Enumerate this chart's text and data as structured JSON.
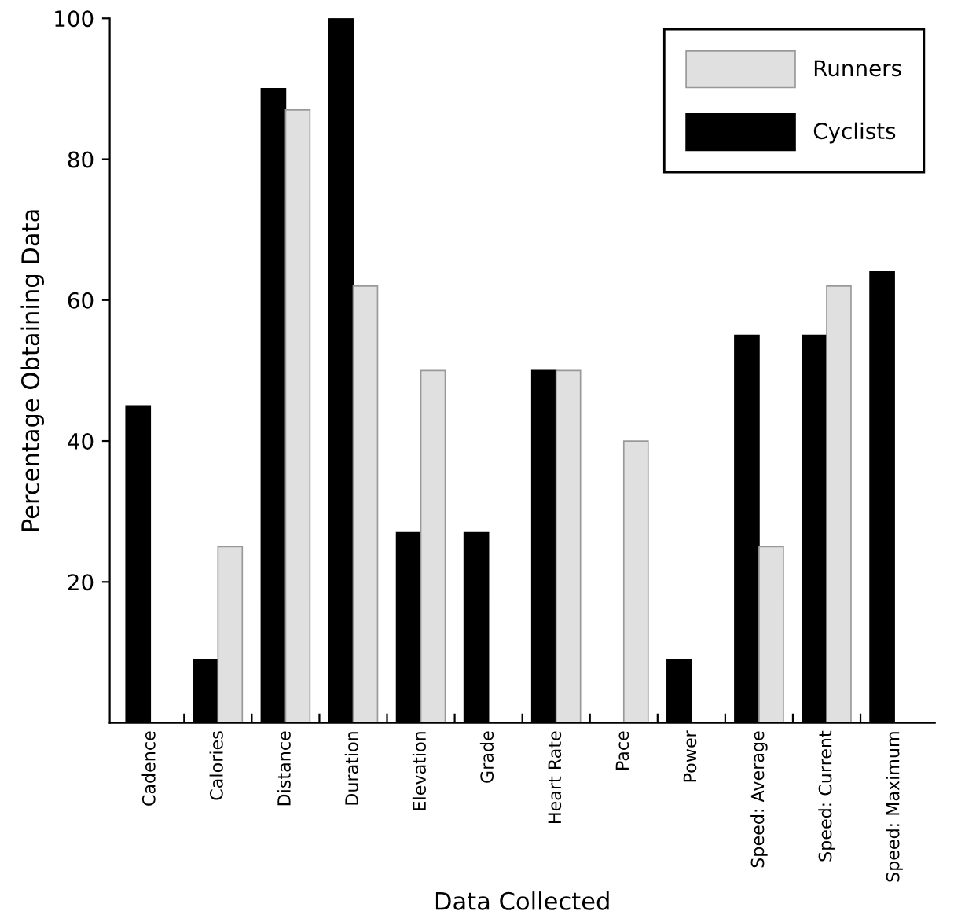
{
  "chart_data": {
    "type": "bar",
    "xlabel": "Data Collected",
    "ylabel": "Percentage Obtaining Data",
    "categories": [
      "Cadence",
      "Calories",
      "Distance",
      "Duration",
      "Elevation",
      "Grade",
      "Heart Rate",
      "Pace",
      "Power",
      "Speed: Average",
      "Speed: Current",
      "Speed: Maximum"
    ],
    "series": [
      {
        "name": "Cyclists",
        "color": "#000000",
        "values": [
          45,
          9,
          90,
          100,
          27,
          27,
          50,
          null,
          9,
          55,
          55,
          64
        ]
      },
      {
        "name": "Runners",
        "color": "#e0e0e0",
        "values": [
          null,
          25,
          87,
          62,
          50,
          null,
          50,
          40,
          null,
          25,
          62,
          null
        ]
      }
    ],
    "ylim": [
      0,
      100
    ],
    "yticks": [
      20,
      40,
      60,
      80,
      100
    ],
    "grid": false,
    "legend": "top right"
  }
}
